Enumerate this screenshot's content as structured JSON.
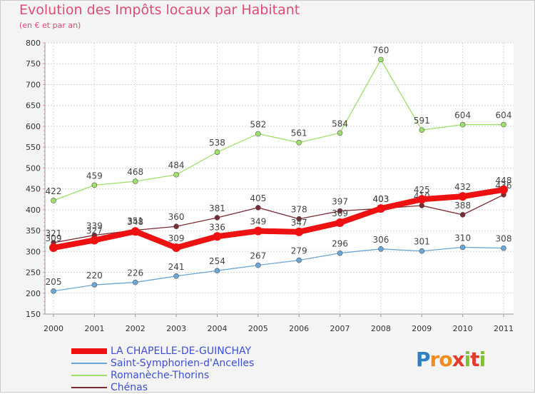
{
  "title": "Evolution des Impôts locaux par Habitant",
  "subtitle": "(en € et par an)",
  "logo": {
    "letters": [
      "P",
      "r",
      "o",
      "x",
      "i",
      "t",
      "i"
    ],
    "colors": [
      "#2e7fc2",
      "#f28c1e",
      "#f28c1e",
      "#e23b2e",
      "#7fbf3a",
      "#e23b2e",
      "#7fbf3a"
    ]
  },
  "chart_data": {
    "type": "line",
    "x": [
      "2000",
      "2001",
      "2002",
      "2003",
      "2004",
      "2005",
      "2006",
      "2007",
      "2008",
      "2009",
      "2010",
      "2011"
    ],
    "ylim": [
      150,
      800
    ],
    "yticks": [
      150,
      200,
      250,
      300,
      350,
      400,
      450,
      500,
      550,
      600,
      650,
      700,
      750,
      800
    ],
    "grid": true,
    "legend_position": "bottom-left",
    "series": [
      {
        "name": "Romanèche-Thorins",
        "color": "#9ee06a",
        "values": [
          422,
          459,
          468,
          484,
          538,
          582,
          561,
          584,
          760,
          591,
          604,
          604
        ],
        "labels": [
          "422",
          "459",
          "468",
          "484",
          "538",
          "582",
          "561",
          "584",
          "760",
          "591",
          "604",
          "604"
        ]
      },
      {
        "name": "Chénas",
        "color": "#7a2a33",
        "values": [
          321,
          339,
          351,
          360,
          381,
          405,
          378,
          397,
          403,
          410,
          388,
          436
        ],
        "labels": [
          "321",
          "339",
          "351",
          "360",
          "381",
          "405",
          "378",
          "397",
          "403",
          "410",
          "388",
          "436"
        ]
      },
      {
        "name": "Saint-Symphorien-d'Ancelles",
        "color": "#6aa6d6",
        "values": [
          205,
          220,
          226,
          241,
          254,
          267,
          279,
          296,
          306,
          301,
          310,
          308
        ],
        "labels": [
          "205",
          "220",
          "226",
          "241",
          "254",
          "267",
          "279",
          "296",
          "306",
          "301",
          "310",
          "308"
        ]
      },
      {
        "name": "LA CHAPELLE-DE-GUINCHAY",
        "color": "#ee1111",
        "values": [
          309,
          327,
          348,
          309,
          336,
          349,
          347,
          369,
          403,
          425,
          432,
          448
        ],
        "labels": [
          "309",
          "327",
          "348",
          "309",
          "336",
          "349",
          "347",
          "369",
          "403",
          "425",
          "432",
          "448"
        ]
      }
    ],
    "legend_order": [
      "LA CHAPELLE-DE-GUINCHAY",
      "Saint-Symphorien-d'Ancelles",
      "Romanèche-Thorins",
      "Chénas"
    ],
    "legend_colors": [
      "#ee1111",
      "#6aa6d6",
      "#9ee06a",
      "#7a2a33"
    ],
    "legend_text_colors": [
      "#3b4fd8",
      "#3b4fd8",
      "#3b4fd8",
      "#3b4fd8"
    ]
  }
}
